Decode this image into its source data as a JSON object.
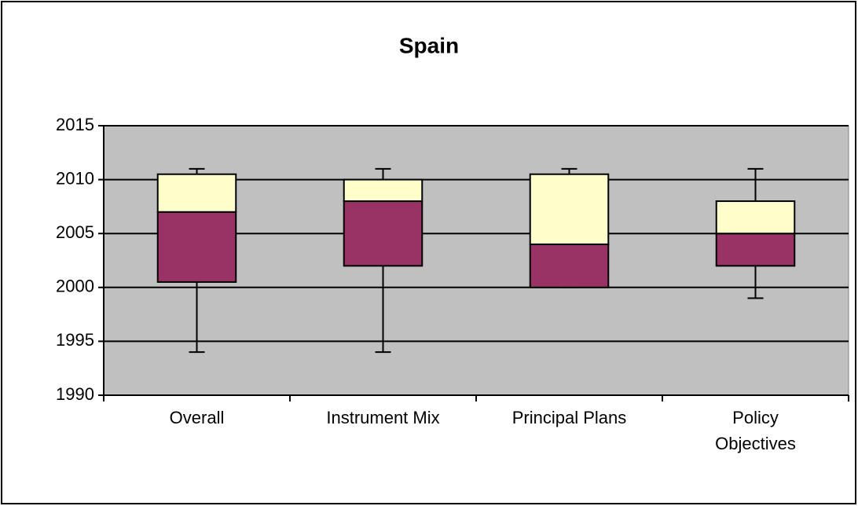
{
  "chart_data": {
    "type": "box",
    "title": "Spain",
    "categories": [
      "Overall",
      "Instrument Mix",
      "Principal Plans",
      "Policy Objectives"
    ],
    "min": [
      1994,
      1994,
      2000,
      1999
    ],
    "q1": [
      2000.5,
      2002,
      2000,
      2002
    ],
    "median": [
      2007,
      2008,
      2004,
      2005
    ],
    "q3": [
      2010.5,
      2010,
      2010.5,
      2008
    ],
    "max": [
      2011,
      2011,
      2011,
      2011
    ],
    "lower_color": "#993366",
    "upper_color": "#ffffcc",
    "plot_background": "#c0c0c0",
    "ylim": [
      1990,
      2015
    ],
    "yticks": [
      1990,
      1995,
      2000,
      2005,
      2010,
      2015
    ],
    "grid": true
  }
}
